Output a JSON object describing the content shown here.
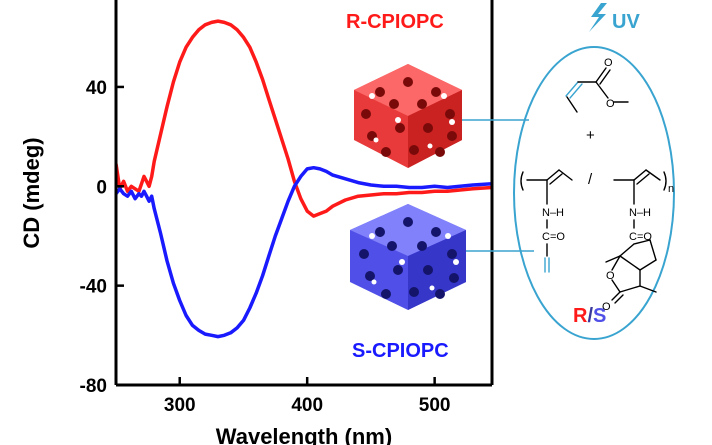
{
  "chart_data": {
    "type": "line",
    "xlabel": "Wavelength (nm)",
    "ylabel": "CD (mdeg)",
    "xlim": [
      250,
      545
    ],
    "ylim": [
      -80,
      75
    ],
    "x_ticks": [
      300,
      400,
      500
    ],
    "y_ticks": [
      -80,
      -40,
      0,
      40
    ],
    "grid": false,
    "series": [
      {
        "name": "R-CPIOPC",
        "color": "#ff1a1a",
        "points": [
          [
            250,
            9
          ],
          [
            253,
            -1
          ],
          [
            256,
            2
          ],
          [
            259,
            -2
          ],
          [
            262,
            0
          ],
          [
            265,
            -1
          ],
          [
            268,
            -2
          ],
          [
            270,
            1
          ],
          [
            272,
            4
          ],
          [
            274,
            2
          ],
          [
            276,
            0
          ],
          [
            278,
            4
          ],
          [
            280,
            10
          ],
          [
            285,
            21
          ],
          [
            290,
            32
          ],
          [
            295,
            42
          ],
          [
            300,
            50
          ],
          [
            305,
            56
          ],
          [
            310,
            60
          ],
          [
            315,
            63
          ],
          [
            320,
            65
          ],
          [
            325,
            66
          ],
          [
            330,
            66.5
          ],
          [
            335,
            66
          ],
          [
            340,
            65
          ],
          [
            345,
            63
          ],
          [
            350,
            60
          ],
          [
            355,
            56
          ],
          [
            360,
            50
          ],
          [
            365,
            43
          ],
          [
            370,
            35
          ],
          [
            375,
            27
          ],
          [
            380,
            19
          ],
          [
            385,
            11
          ],
          [
            390,
            2
          ],
          [
            395,
            -5
          ],
          [
            400,
            -10
          ],
          [
            405,
            -12
          ],
          [
            410,
            -11
          ],
          [
            415,
            -10
          ],
          [
            420,
            -8
          ],
          [
            430,
            -5.5
          ],
          [
            440,
            -4
          ],
          [
            450,
            -3.5
          ],
          [
            460,
            -3
          ],
          [
            470,
            -3
          ],
          [
            480,
            -2.5
          ],
          [
            490,
            -2.5
          ],
          [
            500,
            -2
          ],
          [
            510,
            -2
          ],
          [
            520,
            -1.5
          ],
          [
            530,
            -1
          ],
          [
            545,
            -0.5
          ]
        ]
      },
      {
        "name": "S-CPIOPC",
        "color": "#1a1aff",
        "points": [
          [
            250,
            -3
          ],
          [
            253,
            -1
          ],
          [
            256,
            -3
          ],
          [
            259,
            -4
          ],
          [
            262,
            -2
          ],
          [
            265,
            -5
          ],
          [
            268,
            -3
          ],
          [
            270,
            -4
          ],
          [
            272,
            -2
          ],
          [
            274,
            -4
          ],
          [
            276,
            -6
          ],
          [
            278,
            -4
          ],
          [
            280,
            -9
          ],
          [
            285,
            -19
          ],
          [
            290,
            -30
          ],
          [
            295,
            -39
          ],
          [
            300,
            -46
          ],
          [
            305,
            -52
          ],
          [
            310,
            -56
          ],
          [
            315,
            -58
          ],
          [
            320,
            -59.5
          ],
          [
            325,
            -60
          ],
          [
            330,
            -60.5
          ],
          [
            335,
            -60
          ],
          [
            340,
            -59
          ],
          [
            345,
            -57
          ],
          [
            350,
            -54
          ],
          [
            355,
            -49
          ],
          [
            360,
            -43
          ],
          [
            365,
            -36
          ],
          [
            370,
            -28
          ],
          [
            375,
            -20
          ],
          [
            380,
            -13
          ],
          [
            385,
            -6
          ],
          [
            390,
            0
          ],
          [
            395,
            4
          ],
          [
            400,
            7
          ],
          [
            405,
            7.5
          ],
          [
            410,
            7
          ],
          [
            415,
            6
          ],
          [
            420,
            4.5
          ],
          [
            430,
            3
          ],
          [
            440,
            1.5
          ],
          [
            450,
            0.5
          ],
          [
            460,
            0
          ],
          [
            470,
            0
          ],
          [
            480,
            -0.5
          ],
          [
            490,
            -0.5
          ],
          [
            500,
            0
          ],
          [
            510,
            -0.5
          ],
          [
            520,
            0
          ],
          [
            530,
            0.5
          ],
          [
            545,
            1
          ]
        ]
      }
    ],
    "annotations": {
      "r_label": "R-CPIOPC",
      "s_label": "S-CPIOPC",
      "uv_label": "UV",
      "rs_r": "R",
      "rs_slash": "/",
      "rs_s": "S"
    },
    "colors": {
      "red": "#ff1a1a",
      "blue": "#1a1aff",
      "uv": "#3aa4d0",
      "ellipse": "#3aa4d0"
    }
  },
  "chemistry": {
    "plus": "+",
    "slash": "/",
    "subscript_n": "n",
    "nh_left": "N–H",
    "nh_right": "N–H",
    "co_left": "C=O",
    "co_right": "C=O",
    "o_ester_top": "O",
    "o_ester_single": "O",
    "o_lactone_ring": "O",
    "o_lactone_carbonyl": "O"
  }
}
